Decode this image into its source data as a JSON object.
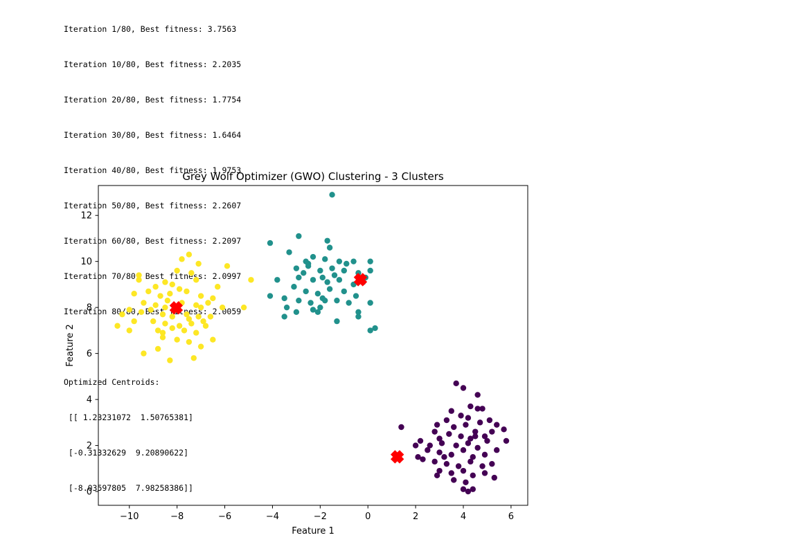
{
  "console_output": {
    "iterations": [
      "Iteration 1/80, Best fitness: 3.7563",
      "Iteration 10/80, Best fitness: 2.2035",
      "Iteration 20/80, Best fitness: 1.7754",
      "Iteration 30/80, Best fitness: 1.6464",
      "Iteration 40/80, Best fitness: 1.9753",
      "Iteration 50/80, Best fitness: 2.2607",
      "Iteration 60/80, Best fitness: 2.2097",
      "Iteration 70/80, Best fitness: 2.0997",
      "Iteration 80/80, Best fitness: 2.0059"
    ],
    "centroids_heading": "Optimized Centroids:",
    "centroid_lines": [
      " [[ 1.23231072  1.50765381]",
      " [-0.31332629  9.20890622]",
      " [-8.03597805  7.98258386]]"
    ]
  },
  "chart_data": {
    "type": "scatter",
    "title": "Grey Wolf Optimizer (GWO) Clustering - 3 Clusters",
    "xlabel": "Feature 1",
    "ylabel": "Feature 2",
    "xlim": [
      -11.3,
      6.7
    ],
    "ylim": [
      -0.6,
      13.3
    ],
    "xticks": [
      -10,
      -8,
      -6,
      -4,
      -2,
      0,
      2,
      4,
      6
    ],
    "xtick_labels": [
      "−10",
      "−8",
      "−6",
      "−4",
      "−2",
      "0",
      "2",
      "4",
      "6"
    ],
    "yticks": [
      0,
      2,
      4,
      6,
      8,
      10,
      12
    ],
    "ytick_labels": [
      "0",
      "2",
      "4",
      "6",
      "8",
      "10",
      "12"
    ],
    "grid": false,
    "series": [
      {
        "color": "#440154",
        "points": [
          [
            3.7,
            4.7
          ],
          [
            4.0,
            4.5
          ],
          [
            4.6,
            4.2
          ],
          [
            4.3,
            3.7
          ],
          [
            4.8,
            3.6
          ],
          [
            3.5,
            3.5
          ],
          [
            3.9,
            3.3
          ],
          [
            4.2,
            3.2
          ],
          [
            4.7,
            3.0
          ],
          [
            5.1,
            3.1
          ],
          [
            3.3,
            3.1
          ],
          [
            2.9,
            2.9
          ],
          [
            3.6,
            2.8
          ],
          [
            4.1,
            2.9
          ],
          [
            4.5,
            2.6
          ],
          [
            5.4,
            2.9
          ],
          [
            2.8,
            2.6
          ],
          [
            3.4,
            2.5
          ],
          [
            3.9,
            2.4
          ],
          [
            4.3,
            2.3
          ],
          [
            4.9,
            2.4
          ],
          [
            5.2,
            2.6
          ],
          [
            2.2,
            2.2
          ],
          [
            2.6,
            2.0
          ],
          [
            3.1,
            2.1
          ],
          [
            3.7,
            2.0
          ],
          [
            4.2,
            2.1
          ],
          [
            4.6,
            1.9
          ],
          [
            5.0,
            2.2
          ],
          [
            5.8,
            2.2
          ],
          [
            2.0,
            2.0
          ],
          [
            2.5,
            1.8
          ],
          [
            3.0,
            1.7
          ],
          [
            3.5,
            1.6
          ],
          [
            4.0,
            1.8
          ],
          [
            4.4,
            1.5
          ],
          [
            4.9,
            1.6
          ],
          [
            5.4,
            1.8
          ],
          [
            2.3,
            1.4
          ],
          [
            2.8,
            1.3
          ],
          [
            3.3,
            1.2
          ],
          [
            3.8,
            1.1
          ],
          [
            4.3,
            1.3
          ],
          [
            4.8,
            1.1
          ],
          [
            5.2,
            1.2
          ],
          [
            3.0,
            0.9
          ],
          [
            3.5,
            0.8
          ],
          [
            4.0,
            0.9
          ],
          [
            4.4,
            0.7
          ],
          [
            4.9,
            0.8
          ],
          [
            2.9,
            0.7
          ],
          [
            3.6,
            0.5
          ],
          [
            4.1,
            0.4
          ],
          [
            4.4,
            0.1
          ],
          [
            4.2,
            0.0
          ],
          [
            4.0,
            0.1
          ],
          [
            5.3,
            0.6
          ],
          [
            5.7,
            2.7
          ],
          [
            1.4,
            2.8
          ],
          [
            2.1,
            1.5
          ],
          [
            3.2,
            1.5
          ],
          [
            4.5,
            2.4
          ],
          [
            3.0,
            2.3
          ],
          [
            4.6,
            3.6
          ]
        ]
      },
      {
        "color": "#21918c",
        "points": [
          [
            -1.5,
            12.9
          ],
          [
            -2.9,
            11.1
          ],
          [
            -1.7,
            10.9
          ],
          [
            -4.1,
            10.8
          ],
          [
            -1.6,
            10.6
          ],
          [
            -3.3,
            10.4
          ],
          [
            -2.3,
            10.2
          ],
          [
            -2.6,
            10.0
          ],
          [
            -1.8,
            10.1
          ],
          [
            -1.2,
            10.0
          ],
          [
            -0.6,
            10.0
          ],
          [
            0.1,
            10.0
          ],
          [
            -3.0,
            9.7
          ],
          [
            -2.5,
            9.8
          ],
          [
            -2.0,
            9.6
          ],
          [
            -1.5,
            9.7
          ],
          [
            -1.0,
            9.6
          ],
          [
            -0.4,
            9.5
          ],
          [
            0.1,
            9.6
          ],
          [
            -3.8,
            9.2
          ],
          [
            -2.9,
            9.3
          ],
          [
            -2.3,
            9.2
          ],
          [
            -1.7,
            9.1
          ],
          [
            -1.2,
            9.2
          ],
          [
            -0.6,
            9.0
          ],
          [
            -0.2,
            9.1
          ],
          [
            -3.1,
            8.9
          ],
          [
            -2.6,
            8.7
          ],
          [
            -2.1,
            8.6
          ],
          [
            -1.6,
            8.8
          ],
          [
            -1.0,
            8.7
          ],
          [
            -0.5,
            8.5
          ],
          [
            -3.5,
            8.4
          ],
          [
            -2.9,
            8.3
          ],
          [
            -2.4,
            8.2
          ],
          [
            -1.9,
            8.4
          ],
          [
            -1.3,
            8.3
          ],
          [
            -0.8,
            8.2
          ],
          [
            0.1,
            8.2
          ],
          [
            -4.1,
            8.5
          ],
          [
            -3.4,
            8.0
          ],
          [
            -2.1,
            7.8
          ],
          [
            -2.0,
            8.0
          ],
          [
            -1.8,
            8.3
          ],
          [
            -0.4,
            7.8
          ],
          [
            -3.0,
            7.8
          ],
          [
            -0.4,
            7.6
          ],
          [
            -1.3,
            7.4
          ],
          [
            -3.5,
            7.6
          ],
          [
            0.1,
            7.0
          ],
          [
            0.3,
            7.1
          ],
          [
            -2.3,
            7.9
          ],
          [
            -0.9,
            9.9
          ],
          [
            -1.4,
            9.4
          ],
          [
            -2.7,
            9.5
          ],
          [
            -0.1,
            9.3
          ],
          [
            -1.9,
            9.3
          ],
          [
            -2.5,
            9.9
          ]
        ]
      },
      {
        "color": "#fde725",
        "points": [
          [
            -7.5,
            10.3
          ],
          [
            -7.8,
            10.1
          ],
          [
            -7.1,
            9.9
          ],
          [
            -5.9,
            9.8
          ],
          [
            -8.0,
            9.6
          ],
          [
            -7.4,
            9.5
          ],
          [
            -9.6,
            9.4
          ],
          [
            -8.5,
            9.1
          ],
          [
            -9.6,
            9.2
          ],
          [
            -7.2,
            9.2
          ],
          [
            -8.9,
            8.9
          ],
          [
            -8.2,
            9.0
          ],
          [
            -7.9,
            8.8
          ],
          [
            -6.3,
            8.9
          ],
          [
            -4.9,
            9.2
          ],
          [
            -9.8,
            8.6
          ],
          [
            -9.2,
            8.7
          ],
          [
            -8.7,
            8.5
          ],
          [
            -8.3,
            8.6
          ],
          [
            -7.6,
            8.7
          ],
          [
            -7.0,
            8.5
          ],
          [
            -6.5,
            8.4
          ],
          [
            -9.4,
            8.2
          ],
          [
            -8.9,
            8.1
          ],
          [
            -8.4,
            8.3
          ],
          [
            -7.8,
            8.2
          ],
          [
            -7.2,
            8.1
          ],
          [
            -6.7,
            8.2
          ],
          [
            -6.1,
            8.0
          ],
          [
            -5.2,
            8.0
          ],
          [
            -10.0,
            7.9
          ],
          [
            -9.5,
            7.8
          ],
          [
            -8.6,
            7.7
          ],
          [
            -8.2,
            7.6
          ],
          [
            -7.6,
            7.7
          ],
          [
            -7.1,
            7.6
          ],
          [
            -6.6,
            7.6
          ],
          [
            -10.3,
            7.7
          ],
          [
            -9.0,
            7.4
          ],
          [
            -8.5,
            7.3
          ],
          [
            -7.9,
            7.2
          ],
          [
            -7.4,
            7.3
          ],
          [
            -6.9,
            7.4
          ],
          [
            -10.5,
            7.2
          ],
          [
            -9.8,
            7.4
          ],
          [
            -8.8,
            7.0
          ],
          [
            -8.2,
            7.1
          ],
          [
            -7.7,
            7.0
          ],
          [
            -7.2,
            6.9
          ],
          [
            -10.0,
            7.0
          ],
          [
            -8.6,
            6.7
          ],
          [
            -8.0,
            6.6
          ],
          [
            -7.5,
            6.5
          ],
          [
            -6.5,
            6.6
          ],
          [
            -8.8,
            6.2
          ],
          [
            -7.0,
            6.3
          ],
          [
            -9.4,
            6.0
          ],
          [
            -7.3,
            5.8
          ],
          [
            -8.3,
            5.7
          ],
          [
            -8.6,
            6.9
          ],
          [
            -7.5,
            7.5
          ],
          [
            -8.5,
            8.0
          ],
          [
            -7.0,
            8.0
          ],
          [
            -6.8,
            7.2
          ],
          [
            -9.1,
            7.9
          ]
        ]
      }
    ],
    "centroids": {
      "color": "#ff0000",
      "points": [
        [
          1.23231072,
          1.50765381
        ],
        [
          -0.31332629,
          9.20890622
        ],
        [
          -8.03597805,
          7.98258386
        ]
      ]
    }
  }
}
